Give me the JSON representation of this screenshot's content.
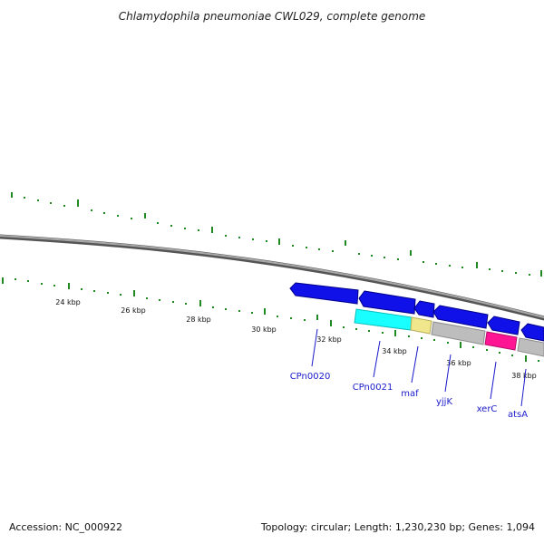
{
  "title": "Chlamydophila pneumoniae CWL029, complete genome",
  "footer": {
    "accession": "Accession: NC_000922",
    "topology": "Topology: circular; Length: 1,230,230 bp; Genes: 1,094"
  },
  "colors": {
    "background": "#ffffff",
    "backbone": "#888888",
    "tick": "#1f8a1f",
    "label": "#1a1acc",
    "gene_blue": "#1010e8",
    "gene_cyan": "#19ffff",
    "gene_khaki": "#f0e68c",
    "gene_gray": "#bdbdbd",
    "gene_magenta": "#ff1493"
  },
  "scale": {
    "unit": "kbp",
    "labels": [
      "24 kbp",
      "26 kbp",
      "28 kbp",
      "30 kbp",
      "32 kbp",
      "34 kbp",
      "36 kbp",
      "38 kbp"
    ]
  },
  "genes": [
    {
      "label": "CPn0020",
      "color": "#1010e8"
    },
    {
      "label": "CPn0021",
      "color": "#19ffff"
    },
    {
      "label": "maf",
      "color": "#f0e68c"
    },
    {
      "label": "yjjK",
      "color": "#bdbdbd"
    },
    {
      "label": "xerC",
      "color": "#ff1493"
    },
    {
      "label": "atsA",
      "color": "#bdbdbd"
    }
  ]
}
